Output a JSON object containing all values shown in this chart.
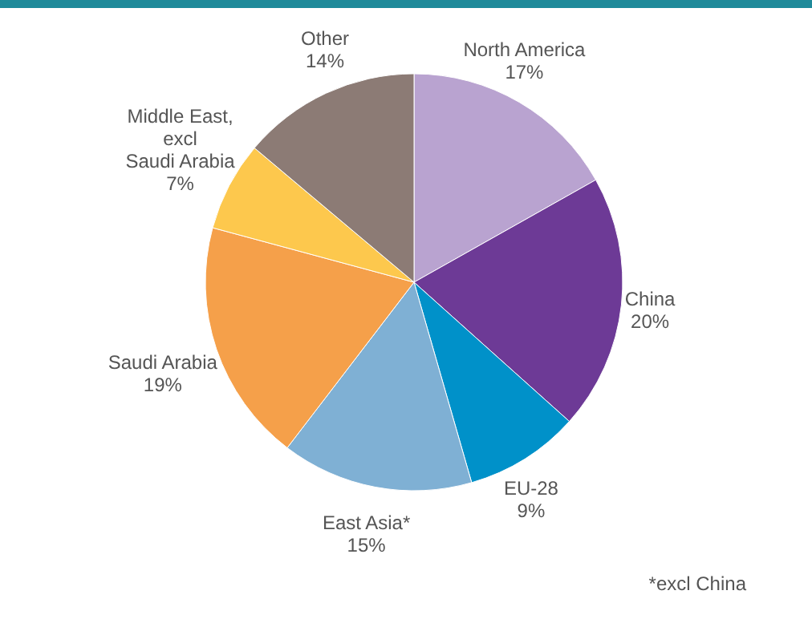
{
  "chart_data": {
    "type": "pie",
    "categories": [
      "North America",
      "China",
      "EU-28",
      "East Asia*",
      "Saudi Arabia",
      "Middle East,\nexcl\nSaudi Arabia",
      "Other"
    ],
    "values": [
      17,
      20,
      9,
      15,
      19,
      7,
      14
    ],
    "value_labels": [
      "17%",
      "20%",
      "9%",
      "15%",
      "19%",
      "7%",
      "14%"
    ],
    "colors": [
      "#b9a3d0",
      "#6d3a96",
      "#0091c9",
      "#7fb0d4",
      "#f5a04a",
      "#fdc84d",
      "#8c7b75"
    ],
    "annotations": [
      "*excl China"
    ]
  }
}
